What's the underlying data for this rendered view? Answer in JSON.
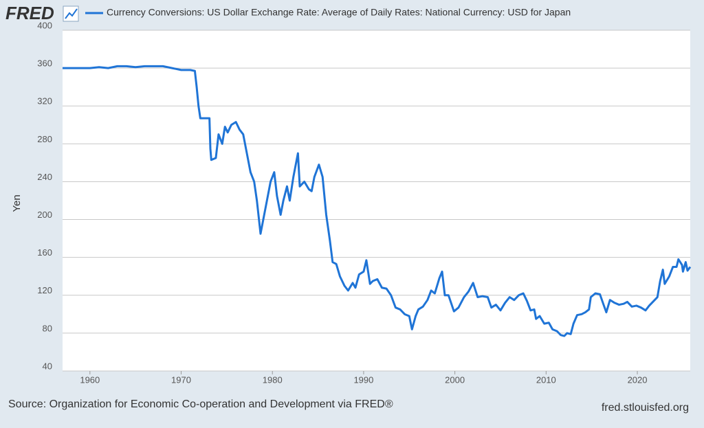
{
  "chart_data": {
    "type": "line",
    "logo": "FRED",
    "title": "Currency Conversions: US Dollar Exchange Rate: Average of Daily Rates: National Currency: USD for Japan",
    "y_label": "Yen",
    "source": "Source: Organization for Economic Co-operation and Development via FRED®",
    "site": "fred.stlouisfed.org",
    "grid": true,
    "xlim": [
      1957,
      2025.8
    ],
    "xticks": [
      1960,
      1970,
      1980,
      1990,
      2000,
      2010,
      2020
    ],
    "ylim": [
      40,
      400
    ],
    "yticks": [
      40,
      80,
      120,
      160,
      200,
      240,
      280,
      320,
      360,
      400
    ],
    "series": [
      {
        "name": "Currency Conversions: US Dollar Exchange Rate: Average of Daily Rates: National Currency: USD for Japan",
        "color": "#1f74d6",
        "x": [
          1957,
          1960,
          1961,
          1962,
          1963,
          1964,
          1965,
          1966,
          1967,
          1968,
          1969,
          1970,
          1971,
          1971.5,
          1971.7,
          1971.9,
          1972.1,
          1973.1,
          1973.2,
          1973.3,
          1973.8,
          1974.1,
          1974.5,
          1974.8,
          1975.1,
          1975.5,
          1976,
          1976.4,
          1976.8,
          1977.2,
          1977.6,
          1978,
          1978.3,
          1978.7,
          1979,
          1979.4,
          1979.8,
          1980.2,
          1980.5,
          1980.9,
          1981.2,
          1981.6,
          1981.9,
          1982.3,
          1982.8,
          1983,
          1983.5,
          1984,
          1984.3,
          1984.6,
          1985.1,
          1985.5,
          1985.9,
          1986.3,
          1986.6,
          1987,
          1987.4,
          1987.9,
          1988.3,
          1988.8,
          1989.1,
          1989.5,
          1990,
          1990.3,
          1990.7,
          1991,
          1991.5,
          1992,
          1992.5,
          1993,
          1993.5,
          1994,
          1994.5,
          1995,
          1995.3,
          1995.7,
          1996,
          1996.5,
          1997,
          1997.4,
          1997.8,
          1998.3,
          1998.6,
          1998.9,
          1999.3,
          1999.9,
          2000.4,
          2001,
          2001.5,
          2002,
          2002.5,
          2003,
          2003.6,
          2004,
          2004.5,
          2005,
          2005.5,
          2006,
          2006.5,
          2007,
          2007.5,
          2007.9,
          2008.3,
          2008.7,
          2008.9,
          2009.3,
          2009.8,
          2010.3,
          2010.7,
          2011.2,
          2011.6,
          2012,
          2012.3,
          2012.7,
          2013,
          2013.4,
          2013.9,
          2014.3,
          2014.7,
          2014.9,
          2015.4,
          2015.9,
          2016.3,
          2016.6,
          2017,
          2017.5,
          2018,
          2018.5,
          2018.9,
          2019.4,
          2019.9,
          2020.4,
          2020.9,
          2021.3,
          2021.8,
          2022.2,
          2022.5,
          2022.8,
          2023,
          2023.5,
          2023.9,
          2024.3,
          2024.5,
          2024.9,
          2025,
          2025.3,
          2025.5,
          2025.8
        ],
        "values": [
          360,
          360,
          361,
          360,
          362,
          362,
          361,
          362,
          362,
          362,
          360,
          358,
          358,
          357,
          340,
          320,
          307,
          307,
          275,
          263,
          265,
          290,
          280,
          298,
          292,
          300,
          303,
          295,
          290,
          270,
          250,
          240,
          220,
          185,
          200,
          220,
          240,
          250,
          225,
          205,
          220,
          235,
          220,
          245,
          270,
          235,
          240,
          232,
          230,
          245,
          258,
          245,
          205,
          178,
          155,
          153,
          140,
          130,
          125,
          133,
          128,
          142,
          145,
          157,
          132,
          135,
          137,
          128,
          127,
          120,
          107,
          105,
          100,
          98,
          84,
          98,
          105,
          108,
          115,
          125,
          122,
          138,
          145,
          120,
          120,
          103,
          107,
          118,
          124,
          133,
          118,
          119,
          118,
          107,
          110,
          104,
          112,
          118,
          115,
          120,
          122,
          114,
          104,
          105,
          95,
          98,
          90,
          91,
          84,
          82,
          78,
          77,
          80,
          79,
          90,
          99,
          100,
          102,
          105,
          118,
          122,
          121,
          110,
          102,
          115,
          112,
          110,
          111,
          113,
          108,
          109,
          107,
          104,
          109,
          114,
          118,
          135,
          147,
          132,
          140,
          150,
          150,
          158,
          152,
          145,
          155,
          146,
          150
        ]
      }
    ]
  }
}
